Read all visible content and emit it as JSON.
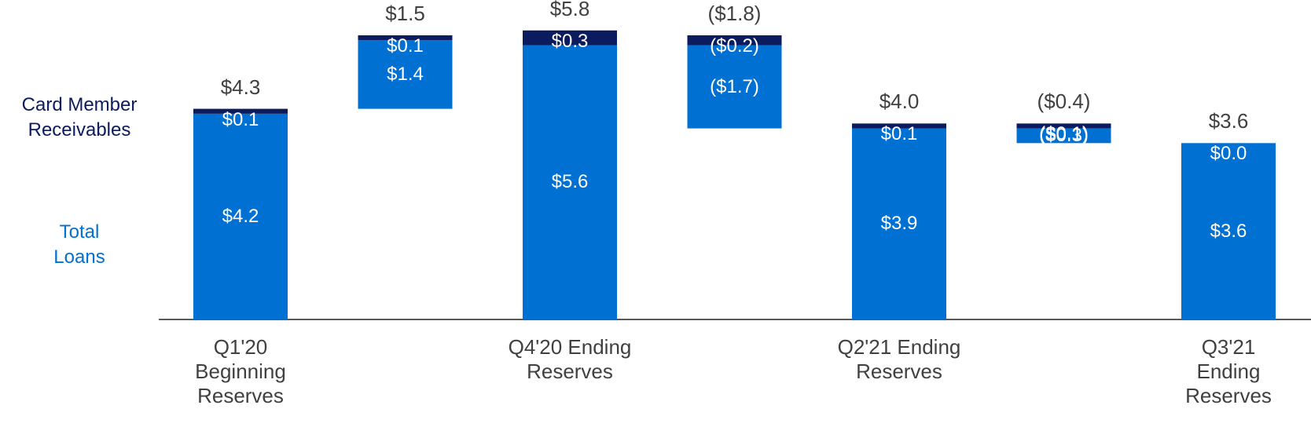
{
  "chart_data": {
    "type": "waterfall",
    "categories": [
      "Q1'20\nBeginning\nReserves",
      null,
      "Q4'20 Ending\nReserves",
      null,
      "Q2'21 Ending\nReserves",
      null,
      "Q3'21 Ending\nReserves"
    ],
    "totals": [
      4.3,
      1.5,
      5.8,
      -1.8,
      4.0,
      -0.4,
      3.6
    ],
    "totals_labels": [
      "$4.3",
      "$1.5",
      "$5.8",
      "($1.8)",
      "$4.0",
      "($0.4)",
      "$3.6"
    ],
    "series": [
      {
        "name": "Total Loans",
        "color": "#0070d2",
        "values": [
          4.2,
          1.4,
          5.6,
          -1.7,
          3.9,
          -0.3,
          3.6
        ],
        "value_labels": [
          "$4.2",
          "$1.4",
          "$5.6",
          "($1.7)",
          "$3.9",
          "($0.3)",
          "$3.6"
        ]
      },
      {
        "name": "Card Member Receivables",
        "color": "#0b1b5e",
        "values": [
          0.1,
          0.1,
          0.3,
          -0.2,
          0.1,
          -0.1,
          0.0
        ],
        "value_labels": [
          "$0.1",
          "$0.1",
          "$0.3",
          "($0.2)",
          "$0.1",
          "($0.1)",
          "$0.0"
        ]
      }
    ]
  }
}
